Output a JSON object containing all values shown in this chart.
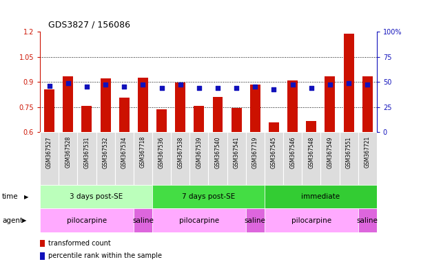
{
  "title": "GDS3827 / 156086",
  "samples": [
    "GSM367527",
    "GSM367528",
    "GSM367531",
    "GSM367532",
    "GSM367534",
    "GSM367718",
    "GSM367536",
    "GSM367538",
    "GSM367539",
    "GSM367540",
    "GSM367541",
    "GSM367719",
    "GSM367545",
    "GSM367546",
    "GSM367548",
    "GSM367549",
    "GSM367551",
    "GSM367721"
  ],
  "bar_values": [
    0.855,
    0.935,
    0.757,
    0.92,
    0.805,
    0.925,
    0.735,
    0.895,
    0.755,
    0.81,
    0.745,
    0.885,
    0.658,
    0.91,
    0.667,
    0.935,
    1.19,
    0.935
  ],
  "dot_values": [
    0.877,
    0.893,
    0.873,
    0.883,
    0.873,
    0.883,
    0.863,
    0.883,
    0.863,
    0.863,
    0.863,
    0.873,
    0.853,
    0.883,
    0.863,
    0.883,
    0.893,
    0.883
  ],
  "bar_color": "#cc1100",
  "dot_color": "#1111bb",
  "bar_bottom": 0.6,
  "ylim": [
    0.6,
    1.2
  ],
  "y2lim": [
    0,
    100
  ],
  "yticks": [
    0.6,
    0.75,
    0.9,
    1.05,
    1.2
  ],
  "ytick_labels": [
    "0.6",
    "0.75",
    "0.9",
    "1.05",
    "1.2"
  ],
  "y2ticks": [
    0,
    25,
    50,
    75,
    100
  ],
  "y2tick_labels": [
    "0",
    "25",
    "50",
    "75",
    "100%"
  ],
  "hlines": [
    0.75,
    0.9,
    1.05
  ],
  "time_groups": [
    {
      "label": "3 days post-SE",
      "start": 0,
      "end": 6,
      "color": "#bbffbb"
    },
    {
      "label": "7 days post-SE",
      "start": 6,
      "end": 12,
      "color": "#44dd44"
    },
    {
      "label": "immediate",
      "start": 12,
      "end": 18,
      "color": "#33cc33"
    }
  ],
  "agent_groups": [
    {
      "label": "pilocarpine",
      "start": 0,
      "end": 5,
      "color": "#ffaaff"
    },
    {
      "label": "saline",
      "start": 5,
      "end": 6,
      "color": "#dd66dd"
    },
    {
      "label": "pilocarpine",
      "start": 6,
      "end": 11,
      "color": "#ffaaff"
    },
    {
      "label": "saline",
      "start": 11,
      "end": 12,
      "color": "#dd66dd"
    },
    {
      "label": "pilocarpine",
      "start": 12,
      "end": 17,
      "color": "#ffaaff"
    },
    {
      "label": "saline",
      "start": 17,
      "end": 18,
      "color": "#dd66dd"
    }
  ],
  "legend_bar_label": "transformed count",
  "legend_dot_label": "percentile rank within the sample",
  "time_label": "time",
  "agent_label": "agent",
  "sample_bg": "#dddddd",
  "bg_color": "#ffffff"
}
